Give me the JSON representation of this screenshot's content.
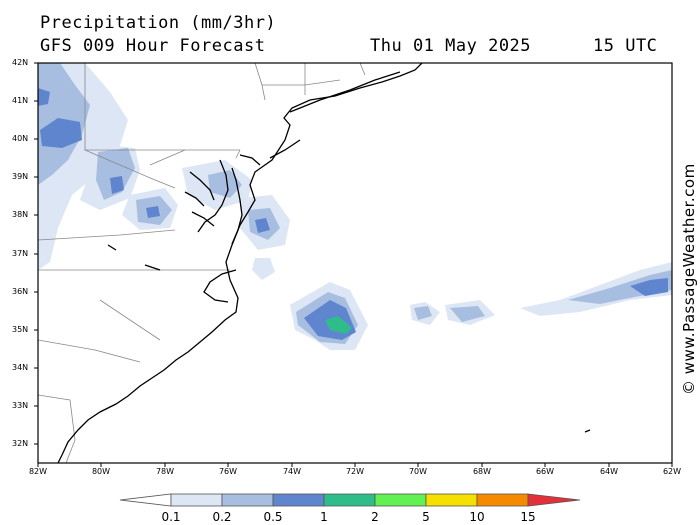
{
  "header": {
    "title": "Precipitation (mm/3hr)",
    "model": "GFS 009 Hour Forecast",
    "date": "Thu 01 May 2025",
    "time": "15 UTC"
  },
  "credit": "© www.PassageWeather.com",
  "map": {
    "lat_labels": [
      "42N",
      "41N",
      "40N",
      "39N",
      "38N",
      "37N",
      "36N",
      "35N",
      "34N",
      "33N",
      "32N"
    ],
    "lon_labels": [
      "82W",
      "80W",
      "78W",
      "76W",
      "74W",
      "72W",
      "70W",
      "68W",
      "66W",
      "64W",
      "62W"
    ],
    "coast_color": "#000000",
    "border_color": "#888888",
    "frame_color": "#000000"
  },
  "colorbar": {
    "labels": [
      "0.1",
      "0.2",
      "0.5",
      "1",
      "2",
      "5",
      "10",
      "15"
    ],
    "colors": [
      "#ffffff",
      "#dde6f4",
      "#a8bee0",
      "#5f85cf",
      "#2ebd8a",
      "#62f052",
      "#f5e000",
      "#f58a00",
      "#e43039"
    ]
  }
}
